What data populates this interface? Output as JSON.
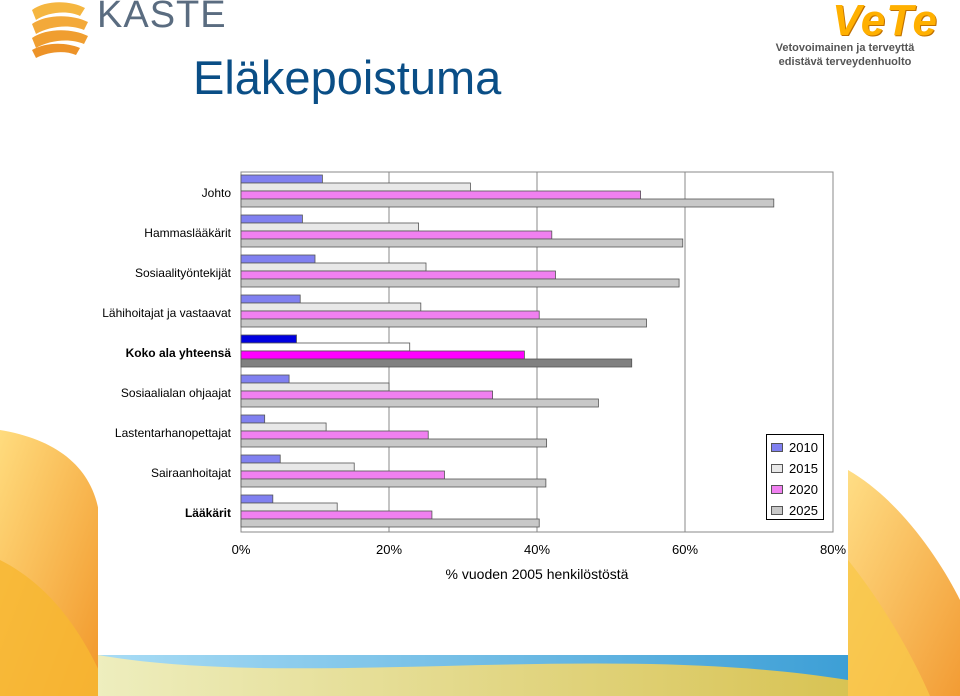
{
  "header": {
    "kaste_logo_text": "KASTE",
    "title": "Eläkepoistuma",
    "vete_logo_text": "VeTe",
    "vete_tagline_line1": "Vetovoimainen ja terveyttä",
    "vete_tagline_line2": "edistävä terveydenhuolto"
  },
  "colors": {
    "title": "#0a4e86",
    "vete_logo": "#ffb000",
    "decor_orange": "#f5a623",
    "decor_blue": "#6fc3e8"
  },
  "chart_data": {
    "type": "bar",
    "orientation": "horizontal",
    "xlabel": "% vuoden 2005 henkilöstöstä",
    "xlim": [
      0,
      80
    ],
    "xticks": [
      "0%",
      "20%",
      "40%",
      "60%",
      "80%"
    ],
    "grid": true,
    "legend_position": "right",
    "categories": [
      "Johto",
      "Hammaslääkärit",
      "Sosiaalityöntekijät",
      "Lähihoitajat ja vastaavat",
      "Koko ala yhteensä",
      "Sosiaalialan ohjaajat",
      "Lastentarhanopettajat",
      "Sairaanhoitajat",
      "Lääkärit"
    ],
    "bold_categories": [
      "Koko ala yhteensä",
      "Lääkärit"
    ],
    "series": [
      {
        "name": "2010",
        "color": "#8080f0",
        "highlight_color": "#0000e0",
        "values": [
          11,
          8.3,
          10,
          8,
          7.5,
          6.5,
          3.2,
          5.3,
          4.3
        ]
      },
      {
        "name": "2015",
        "color": "#e8e8e8",
        "highlight_color": "#ffffff",
        "values": [
          31,
          24,
          25,
          24.3,
          22.8,
          20,
          11.5,
          15.3,
          13
        ]
      },
      {
        "name": "2020",
        "color": "#f080f0",
        "highlight_color": "#ff00ff",
        "values": [
          54,
          42,
          42.5,
          40.3,
          38.3,
          34,
          25.3,
          27.5,
          25.8
        ]
      },
      {
        "name": "2025",
        "color": "#c8c8c8",
        "highlight_color": "#808080",
        "values": [
          72,
          59.7,
          59.2,
          54.8,
          52.8,
          48.3,
          41.3,
          41.2,
          40.3
        ]
      }
    ],
    "highlight_category": "Koko ala yhteensä"
  }
}
